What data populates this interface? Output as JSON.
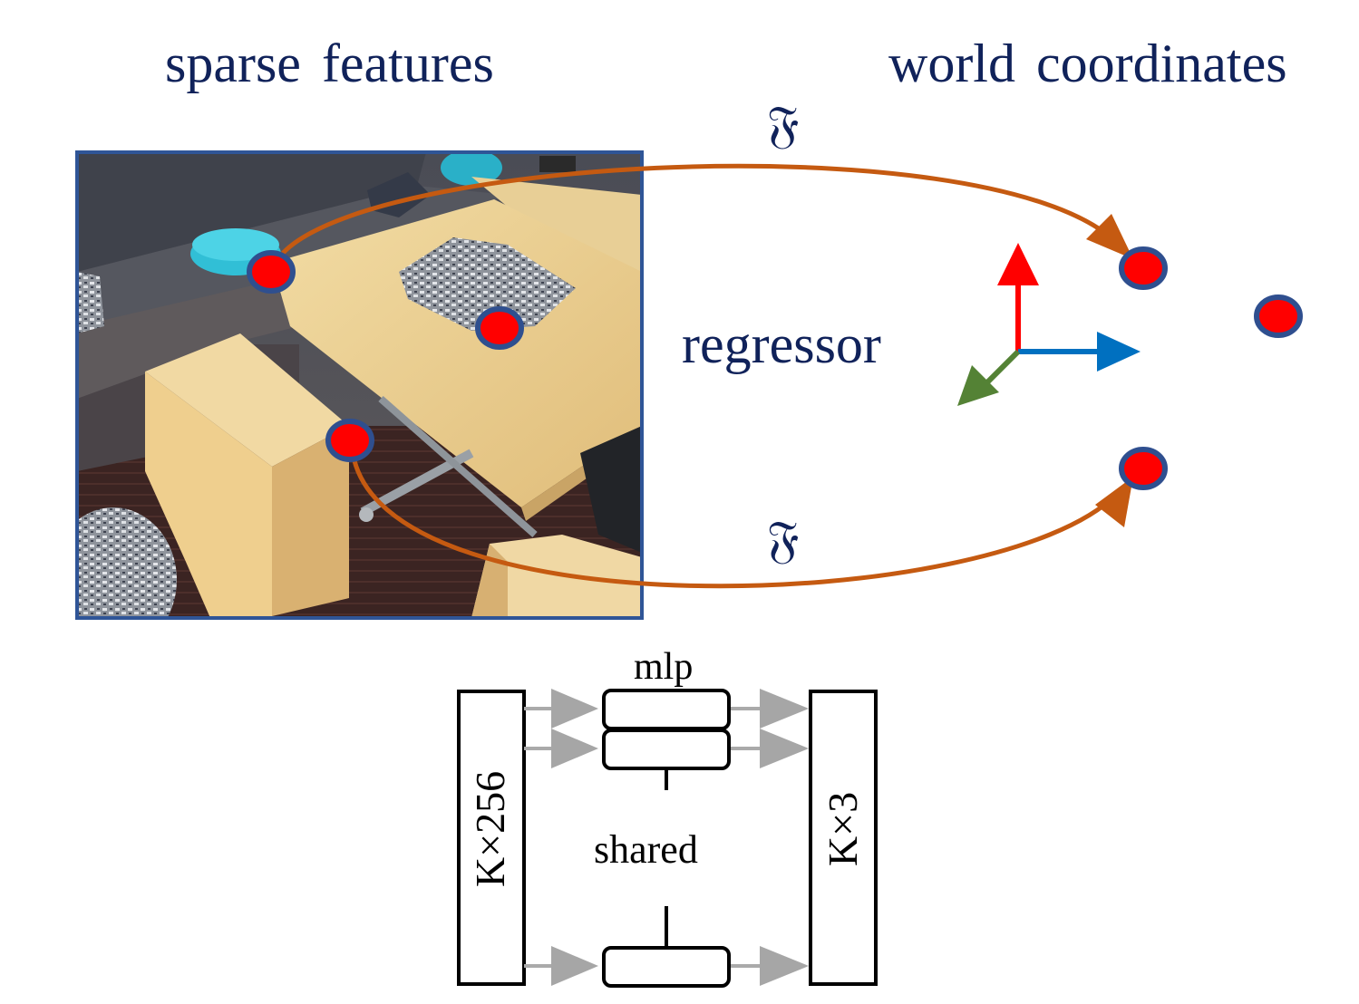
{
  "headings": {
    "left": "sparse features",
    "right": "world coordinates"
  },
  "arrows": {
    "top_symbol": "𝔉",
    "bottom_symbol": "𝔉",
    "color": "#c55a11"
  },
  "center_label": "regressor",
  "axes": {
    "x_color": "#0070c0",
    "y_color": "#ff0000",
    "z_color": "#548235"
  },
  "keypoints": {
    "fill": "#ff0000",
    "stroke": "#2f4f8f"
  },
  "network": {
    "input_label": "K×256",
    "output_label": "K×3",
    "mlp_label": "mlp",
    "shared_label": "shared"
  }
}
